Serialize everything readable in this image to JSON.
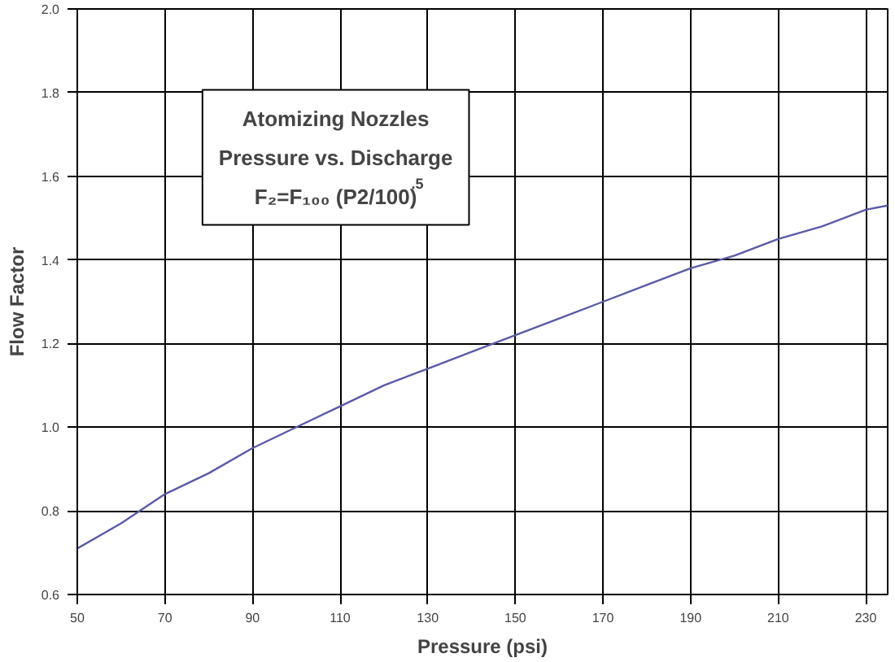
{
  "chart_data": {
    "type": "line",
    "xlabel": "Pressure (psi)",
    "ylabel": "Flow Factor",
    "annotations": [
      "Atomizing Nozzles",
      "Pressure vs. Discharge",
      "F₂=F₁₀₀ (P2/100)$^{.5}$"
    ],
    "x": [
      50,
      60,
      70,
      80,
      90,
      100,
      110,
      120,
      130,
      140,
      150,
      160,
      170,
      180,
      190,
      200,
      210,
      220,
      230,
      235
    ],
    "series": [
      {
        "color": "#5a5aa8",
        "values": [
          0.71,
          0.77,
          0.84,
          0.89,
          0.95,
          1.0,
          1.05,
          1.1,
          1.14,
          1.18,
          1.22,
          1.26,
          1.3,
          1.34,
          1.38,
          1.41,
          1.45,
          1.48,
          1.52,
          1.53
        ]
      }
    ],
    "xlim": [
      50,
      235
    ],
    "ylim": [
      0.6,
      2.0
    ],
    "xticks": [
      50,
      70,
      90,
      110,
      130,
      150,
      170,
      190,
      210,
      230
    ],
    "yticks": [
      0.6,
      0.8,
      {
        "value": 1.0,
        "label": "1.0"
      },
      1.2,
      1.4,
      1.6,
      1.8,
      {
        "value": 2.0,
        "label": "2.0"
      }
    ],
    "grid": true,
    "marker": "none",
    "line_style": "solid"
  }
}
